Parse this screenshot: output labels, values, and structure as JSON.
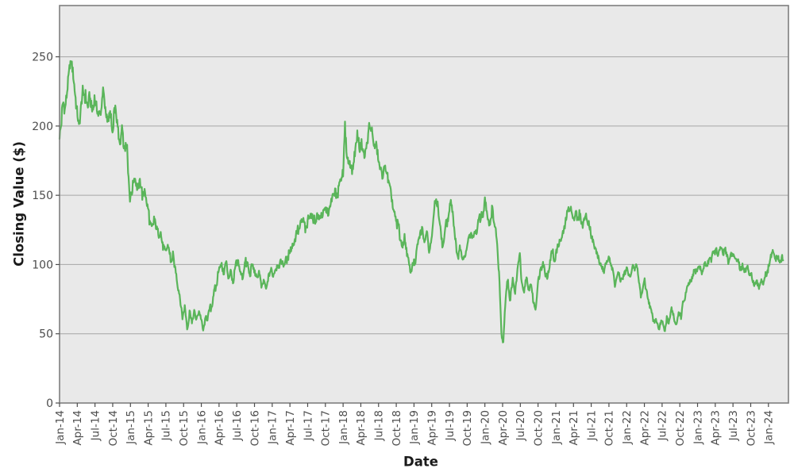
{
  "chart_data": {
    "type": "line",
    "title": "",
    "xlabel": "Date",
    "ylabel": "Closing Value ($)",
    "x_unit": "months since Jan-2014",
    "xlim_months": [
      0,
      122.5
    ],
    "ylim": [
      0,
      287
    ],
    "grid": true,
    "legend": "none",
    "line_color": "#5ab55a",
    "y_ticks": [
      0,
      50,
      100,
      150,
      200,
      250
    ],
    "x_tick_months": [
      0,
      3,
      6,
      9,
      12,
      15,
      18,
      21,
      24,
      27,
      30,
      33,
      36,
      39,
      42,
      45,
      48,
      51,
      54,
      57,
      60,
      63,
      66,
      69,
      72,
      75,
      78,
      81,
      84,
      87,
      90,
      93,
      96,
      99,
      102,
      105,
      108,
      111,
      114,
      117,
      120
    ],
    "x_tick_labels": [
      "Jan-14",
      "Apr-14",
      "Jul-14",
      "Oct-14",
      "Jan-15",
      "Apr-15",
      "Jul-15",
      "Oct-15",
      "Jan-16",
      "Apr-16",
      "Jul-16",
      "Oct-16",
      "Jan-17",
      "Apr-17",
      "Jul-17",
      "Oct-17",
      "Jan-18",
      "Apr-18",
      "Jul-18",
      "Oct-18",
      "Jan-19",
      "Apr-19",
      "Jul-19",
      "Oct-19",
      "Jan-20",
      "Apr-20",
      "Jul-20",
      "Oct-20",
      "Jan-21",
      "Apr-21",
      "Jul-21",
      "Oct-21",
      "Jan-22",
      "Apr-22",
      "Jul-22",
      "Oct-22",
      "Jan-23",
      "Apr-23",
      "Jul-23",
      "Oct-23",
      "Jan-24"
    ],
    "series": [
      {
        "name": "Closing Value",
        "points": [
          [
            0,
            196
          ],
          [
            0.3,
            205
          ],
          [
            0.6,
            215
          ],
          [
            0.9,
            210
          ],
          [
            1.2,
            222
          ],
          [
            1.5,
            235
          ],
          [
            1.8,
            250
          ],
          [
            2.1,
            240
          ],
          [
            2.4,
            230
          ],
          [
            2.7,
            218
          ],
          [
            3,
            210
          ],
          [
            3.3,
            198
          ],
          [
            3.6,
            212
          ],
          [
            3.9,
            225
          ],
          [
            4.2,
            230
          ],
          [
            4.5,
            218
          ],
          [
            4.8,
            212
          ],
          [
            5.1,
            222
          ],
          [
            5.4,
            215
          ],
          [
            5.7,
            208
          ],
          [
            6,
            220
          ],
          [
            6.3,
            215
          ],
          [
            6.6,
            208
          ],
          [
            7,
            214
          ],
          [
            7.4,
            220
          ],
          [
            7.8,
            208
          ],
          [
            8.2,
            200
          ],
          [
            8.6,
            206
          ],
          [
            9,
            199
          ],
          [
            9.4,
            213
          ],
          [
            9.8,
            195
          ],
          [
            10.2,
            190
          ],
          [
            10.6,
            196
          ],
          [
            11,
            188
          ],
          [
            11.4,
            182
          ],
          [
            11.7,
            165
          ],
          [
            11.9,
            150
          ],
          [
            12.2,
            152
          ],
          [
            12.5,
            160
          ],
          [
            12.8,
            163
          ],
          [
            13.2,
            155
          ],
          [
            13.6,
            160
          ],
          [
            14,
            152
          ],
          [
            14.4,
            155
          ],
          [
            14.8,
            140
          ],
          [
            15.2,
            133
          ],
          [
            15.6,
            128
          ],
          [
            16,
            132
          ],
          [
            16.4,
            124
          ],
          [
            16.8,
            120
          ],
          [
            17.2,
            123
          ],
          [
            17.6,
            113
          ],
          [
            18,
            108
          ],
          [
            18.4,
            112
          ],
          [
            18.8,
            104
          ],
          [
            19.2,
            108
          ],
          [
            19.6,
            95
          ],
          [
            20,
            82
          ],
          [
            20.4,
            75
          ],
          [
            20.8,
            62
          ],
          [
            21.2,
            70
          ],
          [
            21.6,
            55
          ],
          [
            22,
            65
          ],
          [
            22.4,
            58
          ],
          [
            22.8,
            67
          ],
          [
            23.2,
            60
          ],
          [
            23.6,
            66
          ],
          [
            24,
            60
          ],
          [
            24.3,
            52
          ],
          [
            24.7,
            62
          ],
          [
            25,
            58
          ],
          [
            25.4,
            66
          ],
          [
            25.8,
            72
          ],
          [
            26.2,
            80
          ],
          [
            26.6,
            88
          ],
          [
            27,
            95
          ],
          [
            27.4,
            100
          ],
          [
            27.8,
            94
          ],
          [
            28.2,
            102
          ],
          [
            28.6,
            90
          ],
          [
            29,
            96
          ],
          [
            29.4,
            88
          ],
          [
            29.8,
            98
          ],
          [
            30.2,
            104
          ],
          [
            30.6,
            96
          ],
          [
            31,
            88
          ],
          [
            31.4,
            99
          ],
          [
            31.8,
            103
          ],
          [
            32.2,
            94
          ],
          [
            32.6,
            100
          ],
          [
            33,
            96
          ],
          [
            33.4,
            88
          ],
          [
            33.8,
            94
          ],
          [
            34.2,
            82
          ],
          [
            34.6,
            88
          ],
          [
            35,
            84
          ],
          [
            35.4,
            92
          ],
          [
            35.8,
            96
          ],
          [
            36.2,
            94
          ],
          [
            36.6,
            99
          ],
          [
            37,
            96
          ],
          [
            37.5,
            102
          ],
          [
            38,
            98
          ],
          [
            38.5,
            104
          ],
          [
            39,
            108
          ],
          [
            39.5,
            115
          ],
          [
            40,
            121
          ],
          [
            40.5,
            128
          ],
          [
            41,
            133
          ],
          [
            41.5,
            126
          ],
          [
            42,
            130
          ],
          [
            42.5,
            135
          ],
          [
            43,
            130
          ],
          [
            43.5,
            137
          ],
          [
            44,
            130
          ],
          [
            44.5,
            135
          ],
          [
            45,
            140
          ],
          [
            45.5,
            136
          ],
          [
            46,
            143
          ],
          [
            46.5,
            148
          ],
          [
            47,
            153
          ],
          [
            47.5,
            158
          ],
          [
            48,
            163
          ],
          [
            48.3,
            203
          ],
          [
            48.6,
            185
          ],
          [
            48.9,
            168
          ],
          [
            49.3,
            172
          ],
          [
            49.6,
            165
          ],
          [
            50,
            180
          ],
          [
            50.4,
            192
          ],
          [
            50.8,
            182
          ],
          [
            51.2,
            188
          ],
          [
            51.6,
            180
          ],
          [
            52,
            190
          ],
          [
            52.4,
            202
          ],
          [
            52.8,
            195
          ],
          [
            53.2,
            185
          ],
          [
            53.6,
            188
          ],
          [
            54,
            178
          ],
          [
            54.4,
            172
          ],
          [
            54.8,
            167
          ],
          [
            55.2,
            170
          ],
          [
            55.6,
            162
          ],
          [
            56,
            155
          ],
          [
            56.4,
            145
          ],
          [
            56.8,
            138
          ],
          [
            57.2,
            128
          ],
          [
            57.6,
            122
          ],
          [
            58,
            115
          ],
          [
            58.4,
            120
          ],
          [
            58.8,
            108
          ],
          [
            59.2,
            100
          ],
          [
            59.5,
            95
          ],
          [
            59.8,
            105
          ],
          [
            60.2,
            100
          ],
          [
            60.6,
            112
          ],
          [
            61,
            122
          ],
          [
            61.4,
            128
          ],
          [
            61.8,
            118
          ],
          [
            62.2,
            122
          ],
          [
            62.6,
            110
          ],
          [
            63,
            122
          ],
          [
            63.4,
            140
          ],
          [
            63.7,
            150
          ],
          [
            64,
            143
          ],
          [
            64.4,
            130
          ],
          [
            64.8,
            115
          ],
          [
            65.2,
            122
          ],
          [
            65.6,
            132
          ],
          [
            66,
            140
          ],
          [
            66.3,
            145
          ],
          [
            66.7,
            128
          ],
          [
            67,
            115
          ],
          [
            67.4,
            106
          ],
          [
            67.8,
            110
          ],
          [
            68.2,
            103
          ],
          [
            68.6,
            108
          ],
          [
            69,
            115
          ],
          [
            69.4,
            122
          ],
          [
            69.8,
            118
          ],
          [
            70.2,
            125
          ],
          [
            70.6,
            120
          ],
          [
            71,
            130
          ],
          [
            71.4,
            138
          ],
          [
            71.7,
            133
          ],
          [
            72,
            150
          ],
          [
            72.4,
            138
          ],
          [
            72.8,
            130
          ],
          [
            73.2,
            140
          ],
          [
            73.6,
            128
          ],
          [
            74,
            120
          ],
          [
            74.4,
            95
          ],
          [
            74.8,
            50
          ],
          [
            75.1,
            43
          ],
          [
            75.5,
            75
          ],
          [
            75.9,
            90
          ],
          [
            76.3,
            75
          ],
          [
            76.7,
            88
          ],
          [
            77.1,
            78
          ],
          [
            77.5,
            92
          ],
          [
            77.9,
            108
          ],
          [
            78.2,
            85
          ],
          [
            78.6,
            78
          ],
          [
            79,
            90
          ],
          [
            79.4,
            80
          ],
          [
            79.8,
            88
          ],
          [
            80.2,
            72
          ],
          [
            80.6,
            68
          ],
          [
            81,
            85
          ],
          [
            81.4,
            95
          ],
          [
            81.8,
            105
          ],
          [
            82.2,
            95
          ],
          [
            82.6,
            88
          ],
          [
            83,
            100
          ],
          [
            83.4,
            108
          ],
          [
            83.8,
            105
          ],
          [
            84,
            110
          ],
          [
            84.5,
            118
          ],
          [
            85,
            122
          ],
          [
            85.5,
            128
          ],
          [
            86,
            138
          ],
          [
            86.5,
            142
          ],
          [
            87,
            132
          ],
          [
            87.5,
            136
          ],
          [
            88,
            135
          ],
          [
            88.5,
            126
          ],
          [
            89,
            132
          ],
          [
            89.6,
            128
          ],
          [
            90,
            120
          ],
          [
            90.5,
            114
          ],
          [
            91,
            108
          ],
          [
            91.5,
            100
          ],
          [
            92,
            95
          ],
          [
            92.5,
            100
          ],
          [
            93,
            108
          ],
          [
            93.5,
            98
          ],
          [
            94,
            85
          ],
          [
            94.5,
            92
          ],
          [
            95,
            90
          ],
          [
            95.5,
            93
          ],
          [
            96,
            95
          ],
          [
            96.5,
            88
          ],
          [
            97,
            97
          ],
          [
            97.5,
            100
          ],
          [
            98,
            90
          ],
          [
            98.4,
            78
          ],
          [
            99,
            88
          ],
          [
            99.5,
            80
          ],
          [
            100,
            70
          ],
          [
            100.5,
            62
          ],
          [
            101,
            60
          ],
          [
            101.5,
            55
          ],
          [
            102,
            60
          ],
          [
            102.4,
            53
          ],
          [
            102.8,
            62
          ],
          [
            103.2,
            57
          ],
          [
            103.6,
            68
          ],
          [
            104,
            62
          ],
          [
            104.4,
            56
          ],
          [
            104.8,
            65
          ],
          [
            105.2,
            62
          ],
          [
            105.6,
            75
          ],
          [
            106,
            78
          ],
          [
            106.5,
            85
          ],
          [
            107,
            90
          ],
          [
            107.5,
            96
          ],
          [
            108,
            97
          ],
          [
            108.4,
            100
          ],
          [
            108.8,
            96
          ],
          [
            109.2,
            103
          ],
          [
            109.6,
            100
          ],
          [
            110,
            106
          ],
          [
            110.4,
            103
          ],
          [
            110.8,
            110
          ],
          [
            111.2,
            113
          ],
          [
            111.6,
            108
          ],
          [
            112,
            112
          ],
          [
            112.4,
            105
          ],
          [
            112.8,
            110
          ],
          [
            113.2,
            104
          ],
          [
            113.6,
            108
          ],
          [
            114,
            106
          ],
          [
            114.4,
            100
          ],
          [
            114.8,
            103
          ],
          [
            115.2,
            97
          ],
          [
            115.6,
            100
          ],
          [
            116,
            94
          ],
          [
            116.4,
            97
          ],
          [
            116.8,
            90
          ],
          [
            117.2,
            93
          ],
          [
            117.6,
            86
          ],
          [
            118,
            88
          ],
          [
            118.4,
            83
          ],
          [
            118.8,
            90
          ],
          [
            119.2,
            87
          ],
          [
            119.6,
            93
          ],
          [
            120,
            98
          ],
          [
            120.4,
            103
          ],
          [
            120.8,
            107
          ],
          [
            121.2,
            103
          ],
          [
            121.6,
            106
          ],
          [
            122,
            100
          ],
          [
            122.3,
            103
          ],
          [
            122.5,
            102
          ]
        ]
      }
    ]
  },
  "colors": {
    "figure_bg": "#ffffff",
    "plot_bg": "#e9e9e9",
    "grid": "#a6a6a6",
    "border": "#7f7f7f",
    "tick_mark": "#4d4d4d",
    "tick_text": "#4d4d4d",
    "axis_title_text": "#1a1a1a"
  }
}
